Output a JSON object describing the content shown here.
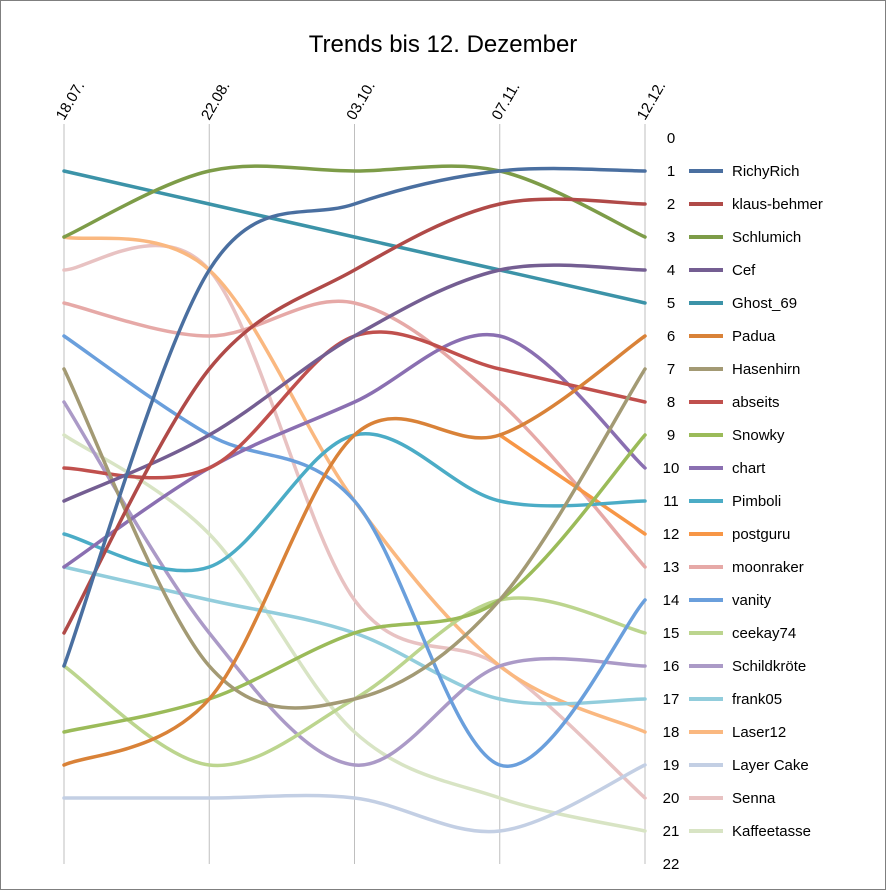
{
  "chart_data": {
    "type": "line",
    "title": "Trends bis 12. Dezember",
    "categories": [
      "18.07.",
      "22.08.",
      "03.10.",
      "07.11.",
      "12.12."
    ],
    "y_axis": {
      "reversed": true,
      "min": 0,
      "max": 22,
      "ticks": [
        0,
        1,
        2,
        3,
        4,
        5,
        6,
        7,
        8,
        9,
        10,
        11,
        12,
        13,
        14,
        15,
        16,
        17,
        18,
        19,
        20,
        21,
        22
      ]
    },
    "grid": {
      "vertical": true,
      "horizontal": false
    },
    "legend_position": "right",
    "series": [
      {
        "name": "RichyRich",
        "color": "#4a6fa0",
        "values": [
          16,
          4,
          2,
          1,
          1
        ]
      },
      {
        "name": "klaus-behmer",
        "color": "#b04a48",
        "values": [
          15,
          7,
          4,
          2,
          2
        ]
      },
      {
        "name": "Schlumich",
        "color": "#7d9c48",
        "values": [
          3,
          1,
          1,
          1,
          3
        ]
      },
      {
        "name": "Cef",
        "color": "#745e92",
        "values": [
          11,
          9,
          6,
          4,
          4
        ]
      },
      {
        "name": "Ghost_69",
        "color": "#3c93a8",
        "values": [
          1,
          2,
          3,
          4,
          5
        ]
      },
      {
        "name": "Padua",
        "color": "#d98238",
        "values": [
          19,
          17,
          9,
          9,
          6
        ]
      },
      {
        "name": "Hasenhirn",
        "color": "#a39a74",
        "values": [
          7,
          16,
          17,
          14,
          7
        ]
      },
      {
        "name": "abseits",
        "color": "#c0504d",
        "values": [
          10,
          10,
          6,
          7,
          8
        ]
      },
      {
        "name": "Snowky",
        "color": "#9bbb59",
        "values": [
          18,
          17,
          15,
          14,
          9
        ]
      },
      {
        "name": "chart",
        "color": "#8a6fb1",
        "values": [
          13,
          10,
          8,
          6,
          10
        ]
      },
      {
        "name": "Pimboli",
        "color": "#4bacc6",
        "values": [
          12,
          13,
          9,
          11,
          11
        ]
      },
      {
        "name": "postguru",
        "color": "#f79646",
        "values": [
          null,
          null,
          null,
          9,
          12
        ]
      },
      {
        "name": "moonraker",
        "color": "#e6a9a7",
        "values": [
          5,
          6,
          5,
          8,
          13
        ]
      },
      {
        "name": "vanity",
        "color": "#6a9fdc",
        "values": [
          6,
          9,
          11,
          19,
          14
        ]
      },
      {
        "name": "ceekay74",
        "color": "#bcd58e",
        "values": [
          16,
          19,
          17,
          14,
          15
        ]
      },
      {
        "name": "Schildkröte",
        "color": "#ab9ac7",
        "values": [
          8,
          15,
          19,
          16,
          16
        ]
      },
      {
        "name": "frank05",
        "color": "#92cddc",
        "values": [
          13,
          14,
          15,
          17,
          17
        ]
      },
      {
        "name": "Laser12",
        "color": "#fab880",
        "values": [
          3,
          4,
          11,
          16,
          18
        ]
      },
      {
        "name": "Layer Cake",
        "color": "#c3cfe4",
        "values": [
          20,
          20,
          20,
          21,
          19
        ]
      },
      {
        "name": "Senna",
        "color": "#e8c2c2",
        "values": [
          4,
          4,
          14,
          16,
          20
        ]
      },
      {
        "name": "Kaffeetasse",
        "color": "#d8e4c4",
        "values": [
          9,
          12,
          18,
          20,
          21
        ]
      }
    ]
  }
}
